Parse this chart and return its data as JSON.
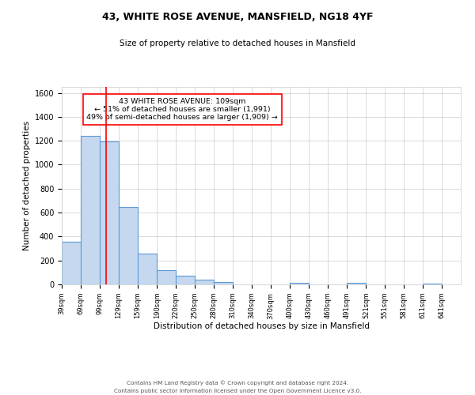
{
  "title1": "43, WHITE ROSE AVENUE, MANSFIELD, NG18 4YF",
  "title2": "Size of property relative to detached houses in Mansfield",
  "xlabel": "Distribution of detached houses by size in Mansfield",
  "ylabel": "Number of detached properties",
  "footer1": "Contains HM Land Registry data © Crown copyright and database right 2024.",
  "footer2": "Contains public sector information licensed under the Open Government Licence v3.0.",
  "annotation_line1": "43 WHITE ROSE AVENUE: 109sqm",
  "annotation_line2": "← 51% of detached houses are smaller (1,991)",
  "annotation_line3": "49% of semi-detached houses are larger (1,909) →",
  "bar_left_edges": [
    39,
    69,
    99,
    129,
    159,
    190,
    220,
    250,
    280,
    310,
    340,
    370,
    400,
    430,
    460,
    491,
    521,
    551,
    581,
    611
  ],
  "bar_widths": [
    30,
    30,
    30,
    30,
    31,
    30,
    30,
    30,
    30,
    30,
    30,
    30,
    30,
    30,
    31,
    30,
    30,
    30,
    30,
    30
  ],
  "bar_heights": [
    355,
    1240,
    1195,
    645,
    260,
    120,
    75,
    40,
    20,
    0,
    0,
    0,
    15,
    0,
    0,
    10,
    0,
    0,
    0,
    5
  ],
  "tick_labels": [
    "39sqm",
    "69sqm",
    "99sqm",
    "129sqm",
    "159sqm",
    "190sqm",
    "220sqm",
    "250sqm",
    "280sqm",
    "310sqm",
    "340sqm",
    "370sqm",
    "400sqm",
    "430sqm",
    "460sqm",
    "491sqm",
    "521sqm",
    "551sqm",
    "581sqm",
    "611sqm",
    "641sqm"
  ],
  "tick_positions": [
    39,
    69,
    99,
    129,
    159,
    190,
    220,
    250,
    280,
    310,
    340,
    370,
    400,
    430,
    460,
    491,
    521,
    551,
    581,
    611,
    641
  ],
  "ylim": [
    0,
    1650
  ],
  "xlim": [
    39,
    671
  ],
  "bar_color": "#c5d8f0",
  "bar_edge_color": "#5b9bd5",
  "red_line_x": 109,
  "background_color": "#ffffff",
  "grid_color": "#cccccc"
}
